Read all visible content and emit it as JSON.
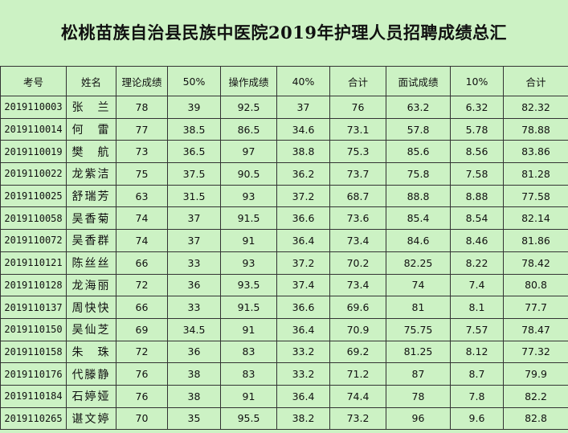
{
  "title": "松桃苗族自治县民族中医院2019年护理人员招聘成绩总汇",
  "headers": [
    "考号",
    "姓名",
    "理论成绩",
    "50%",
    "操作成绩",
    "40%",
    "合计",
    "面试成绩",
    "10%",
    "合计"
  ],
  "rows": [
    [
      "2019110003",
      "张　兰",
      "78",
      "39",
      "92.5",
      "37",
      "76",
      "63.2",
      "6.32",
      "82.32"
    ],
    [
      "2019110014",
      "何　雷",
      "77",
      "38.5",
      "86.5",
      "34.6",
      "73.1",
      "57.8",
      "5.78",
      "78.88"
    ],
    [
      "2019110019",
      "樊　航",
      "73",
      "36.5",
      "97",
      "38.8",
      "75.3",
      "85.6",
      "8.56",
      "83.86"
    ],
    [
      "2019110022",
      "龙紫洁",
      "75",
      "37.5",
      "90.5",
      "36.2",
      "73.7",
      "75.8",
      "7.58",
      "81.28"
    ],
    [
      "2019110025",
      "舒瑞芳",
      "63",
      "31.5",
      "93",
      "37.2",
      "68.7",
      "88.8",
      "8.88",
      "77.58"
    ],
    [
      "2019110058",
      "吴香菊",
      "74",
      "37",
      "91.5",
      "36.6",
      "73.6",
      "85.4",
      "8.54",
      "82.14"
    ],
    [
      "2019110072",
      "吴香群",
      "74",
      "37",
      "91",
      "36.4",
      "73.4",
      "84.6",
      "8.46",
      "81.86"
    ],
    [
      "2019110121",
      "陈丝丝",
      "66",
      "33",
      "93",
      "37.2",
      "70.2",
      "82.25",
      "8.22",
      "78.42"
    ],
    [
      "2019110128",
      "龙海丽",
      "72",
      "36",
      "93.5",
      "37.4",
      "73.4",
      "74",
      "7.4",
      "80.8"
    ],
    [
      "2019110137",
      "周快快",
      "66",
      "33",
      "91.5",
      "36.6",
      "69.6",
      "81",
      "8.1",
      "77.7"
    ],
    [
      "2019110150",
      "吴仙芝",
      "69",
      "34.5",
      "91",
      "36.4",
      "70.9",
      "75.75",
      "7.57",
      "78.47"
    ],
    [
      "2019110158",
      "朱　珠",
      "72",
      "36",
      "83",
      "33.2",
      "69.2",
      "81.25",
      "8.12",
      "77.32"
    ],
    [
      "2019110176",
      "代滕静",
      "76",
      "38",
      "83",
      "33.2",
      "71.2",
      "87",
      "8.7",
      "79.9"
    ],
    [
      "2019110184",
      "石婷娅",
      "76",
      "38",
      "91",
      "36.4",
      "74.4",
      "78",
      "7.8",
      "82.2"
    ],
    [
      "2019110265",
      "谌文婷",
      "70",
      "35",
      "95.5",
      "38.2",
      "73.2",
      "96",
      "9.6",
      "82.8"
    ]
  ]
}
